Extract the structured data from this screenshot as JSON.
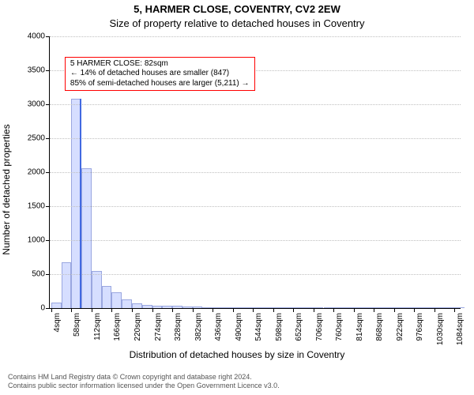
{
  "title_line1": "5, HARMER CLOSE, COVENTRY, CV2 2EW",
  "title_line2": "Size of property relative to detached houses in Coventry",
  "title_fontsize": 13,
  "ylabel": "Number of detached properties",
  "xlabel": "Distribution of detached houses by size in Coventry",
  "axis_label_fontsize": 12,
  "tick_fontsize": 10,
  "chart": {
    "type": "histogram",
    "ylim": [
      0,
      4000
    ],
    "ytick_step": 500,
    "bar_color": "#d6deff",
    "bar_border": "#9aa7e0",
    "grid_color": "#bfbfbf",
    "background_color": "#ffffff",
    "bin_start": 4,
    "bin_width": 27,
    "n_bins": 41,
    "x_vis_start": 0,
    "x_vis_end": 1100,
    "x_tick_start": 4,
    "x_tick_step": 54,
    "x_tick_count": 21,
    "x_tick_suffix": "sqm",
    "values": [
      80,
      670,
      3080,
      2060,
      550,
      320,
      230,
      130,
      70,
      50,
      30,
      30,
      30,
      20,
      20,
      15,
      10,
      10,
      10,
      8,
      8,
      6,
      6,
      5,
      5,
      4,
      4,
      3,
      3,
      3,
      2,
      2,
      2,
      2,
      2,
      1,
      1,
      1,
      1,
      1,
      1
    ],
    "marker": {
      "x": 82,
      "color": "#4169e1",
      "height_value": 3080
    },
    "annotation": {
      "lines": [
        "5 HARMER CLOSE: 82sqm",
        "← 14% of detached houses are smaller (847)",
        "85% of semi-detached houses are larger (5,211) →"
      ],
      "border_color": "#ff0000",
      "bg_color": "#ffffff",
      "fontsize": 10,
      "top_value": 3700,
      "left_value": 40
    }
  },
  "footer_line1": "Contains HM Land Registry data © Crown copyright and database right 2024.",
  "footer_line2": "Contains public sector information licensed under the Open Government Licence v3.0.",
  "footer_fontsize": 9,
  "footer_color": "#555555"
}
